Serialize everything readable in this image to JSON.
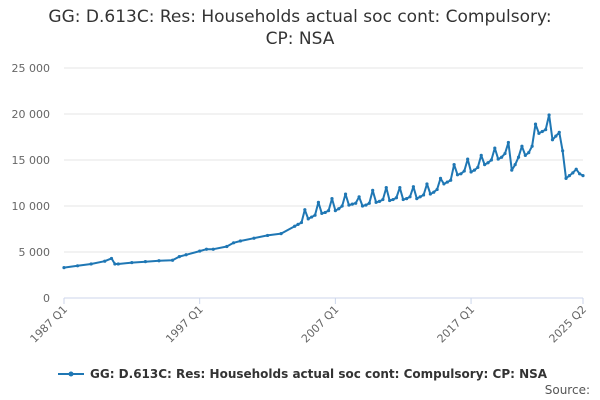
{
  "title_line1": "GG: D.613C: Res: Households actual soc cont: Compulsory:",
  "title_line2": "CP: NSA",
  "source_label": "Source:",
  "chart_data": {
    "type": "line",
    "title": "GG: D.613C: Res: Households actual soc cont: Compulsory: CP: NSA",
    "xlabel": "",
    "ylabel": "",
    "ylim": [
      0,
      25000
    ],
    "yticks": [
      0,
      5000,
      10000,
      15000,
      20000,
      25000
    ],
    "ytick_labels": [
      "0",
      "5 000",
      "10 000",
      "15 000",
      "20 000",
      "25 000"
    ],
    "xlim": [
      "1987 Q1",
      "2025 Q2"
    ],
    "xtick_labels": [
      "1987 Q1",
      "1997 Q1",
      "2007 Q1",
      "2017 Q1",
      "2025 Q2"
    ],
    "xtick_years": [
      1987,
      1997,
      2007,
      2017,
      2025.25
    ],
    "grid": true,
    "legend_position": "bottom",
    "color": "#1f77b4",
    "series": [
      {
        "name": "GG: D.613C: Res: Households actual soc cont: Compulsory: CP: NSA",
        "x": [
          1987,
          1988,
          1989,
          1990,
          1990.5,
          1990.75,
          1991,
          1992,
          1993,
          1994,
          1995,
          1995.5,
          1996,
          1997,
          1997.5,
          1998,
          1999,
          1999.5,
          2000,
          2001,
          2002,
          2003,
          2004,
          2004.25,
          2004.5,
          2004.75,
          2005,
          2005.25,
          2005.5,
          2005.75,
          2006,
          2006.25,
          2006.5,
          2006.75,
          2007,
          2007.25,
          2007.5,
          2007.75,
          2008,
          2008.25,
          2008.5,
          2008.75,
          2009,
          2009.25,
          2009.5,
          2009.75,
          2010,
          2010.25,
          2010.5,
          2010.75,
          2011,
          2011.25,
          2011.5,
          2011.75,
          2012,
          2012.25,
          2012.5,
          2012.75,
          2013,
          2013.25,
          2013.5,
          2013.75,
          2014,
          2014.25,
          2014.5,
          2014.75,
          2015,
          2015.25,
          2015.5,
          2015.75,
          2016,
          2016.25,
          2016.5,
          2016.75,
          2017,
          2017.25,
          2017.5,
          2017.75,
          2018,
          2018.25,
          2018.5,
          2018.75,
          2019,
          2019.25,
          2019.5,
          2019.75,
          2020,
          2020.25,
          2020.5,
          2020.75,
          2021,
          2021.25,
          2021.5,
          2021.75,
          2022,
          2022.25,
          2022.5,
          2022.75,
          2023,
          2023.25,
          2023.5,
          2023.75,
          2024,
          2024.25,
          2024.5,
          2024.75,
          2025,
          2025.25
        ],
        "values": [
          3300,
          3500,
          3700,
          4000,
          4300,
          3700,
          3700,
          3850,
          3950,
          4050,
          4100,
          4500,
          4700,
          5100,
          5300,
          5300,
          5600,
          6000,
          6200,
          6500,
          6800,
          7000,
          7800,
          8000,
          8200,
          9600,
          8600,
          8800,
          9000,
          10400,
          9200,
          9300,
          9500,
          10800,
          9500,
          9700,
          10000,
          11300,
          10100,
          10200,
          10300,
          11000,
          10000,
          10100,
          10300,
          11700,
          10400,
          10500,
          10700,
          12000,
          10600,
          10700,
          10900,
          12000,
          10700,
          10800,
          11000,
          12100,
          10800,
          11000,
          11200,
          12400,
          11300,
          11500,
          11800,
          13000,
          12400,
          12600,
          12800,
          14500,
          13400,
          13500,
          13800,
          15100,
          13700,
          13900,
          14200,
          15500,
          14500,
          14700,
          15000,
          16300,
          15100,
          15300,
          15700,
          16900,
          13900,
          14500,
          15300,
          16500,
          15500,
          15800,
          16500,
          18900,
          17900,
          18100,
          18300,
          19900,
          17200,
          17600,
          18000,
          16000,
          13000,
          13300,
          13600,
          14000,
          13500,
          13300
        ]
      }
    ]
  }
}
